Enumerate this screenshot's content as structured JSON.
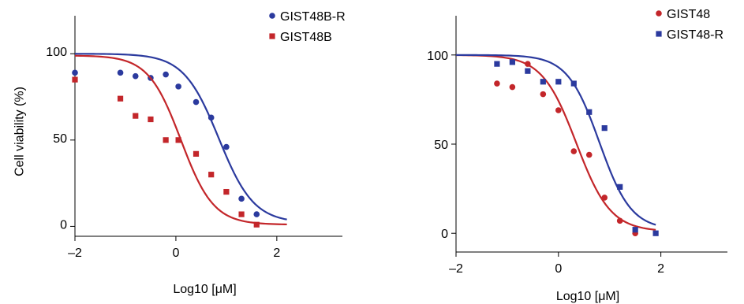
{
  "chart_data": [
    {
      "type": "scatter",
      "title": "",
      "xlabel": "Log10 [μM]",
      "ylabel": "Cell viability (%)",
      "xlim": [
        -2,
        3.3
      ],
      "ylim": [
        -3,
        122
      ],
      "xticks": [
        {
          "value": -2,
          "label": "–2"
        },
        {
          "value": 0,
          "label": "0"
        },
        {
          "value": 2,
          "label": "2"
        }
      ],
      "yticks": [
        {
          "value": 0,
          "label": "0"
        },
        {
          "value": 50,
          "label": "50"
        },
        {
          "value": 100,
          "label": "100"
        }
      ],
      "grid": false,
      "legend_position": "top-right",
      "series": [
        {
          "name": "GIST48B-R",
          "marker": "circle",
          "color": "#2b3a9e",
          "points": [
            [
              -2.0,
              89
            ],
            [
              -1.1,
              89
            ],
            [
              -0.8,
              87
            ],
            [
              -0.5,
              86
            ],
            [
              -0.2,
              88
            ],
            [
              0.05,
              81
            ],
            [
              0.4,
              72
            ],
            [
              0.7,
              63
            ],
            [
              1.0,
              46
            ],
            [
              1.3,
              16
            ],
            [
              1.6,
              7
            ]
          ],
          "fit": {
            "bottom": 2,
            "top": 100,
            "log_ic50": 0.85,
            "hill": 1.25,
            "x_range": [
              -2,
              2.2
            ]
          }
        },
        {
          "name": "GIST48B",
          "marker": "square",
          "color": "#c3262a",
          "points": [
            [
              -2.0,
              85
            ],
            [
              -1.1,
              74
            ],
            [
              -0.8,
              64
            ],
            [
              -0.5,
              62
            ],
            [
              -0.2,
              50
            ],
            [
              0.05,
              50
            ],
            [
              0.4,
              42
            ],
            [
              0.7,
              30
            ],
            [
              1.0,
              20
            ],
            [
              1.3,
              7
            ],
            [
              1.6,
              1
            ]
          ],
          "fit": {
            "bottom": 1,
            "top": 99,
            "log_ic50": 0.1,
            "hill": 1.35,
            "x_range": [
              -2,
              2.2
            ]
          }
        }
      ]
    },
    {
      "type": "scatter",
      "title": "",
      "xlabel": "Log10 [μM]",
      "ylabel": "",
      "xlim": [
        -2,
        3.3
      ],
      "ylim": [
        -3,
        122
      ],
      "xticks": [
        {
          "value": -2,
          "label": "–2"
        },
        {
          "value": 0,
          "label": "0"
        },
        {
          "value": 2,
          "label": "2"
        }
      ],
      "yticks": [
        {
          "value": 0,
          "label": "0"
        },
        {
          "value": 50,
          "label": "50"
        },
        {
          "value": 100,
          "label": "100"
        }
      ],
      "grid": false,
      "legend_position": "top-right",
      "series": [
        {
          "name": "GIST48",
          "marker": "circle",
          "color": "#c3262a",
          "points": [
            [
              -1.2,
              84
            ],
            [
              -0.9,
              82
            ],
            [
              -0.6,
              95
            ],
            [
              -0.3,
              78
            ],
            [
              0.0,
              69
            ],
            [
              0.3,
              46
            ],
            [
              0.6,
              44
            ],
            [
              0.9,
              20
            ],
            [
              1.2,
              7
            ],
            [
              1.5,
              0
            ]
          ],
          "fit": {
            "bottom": 1,
            "top": 100,
            "log_ic50": 0.35,
            "hill": 1.3,
            "x_range": [
              -2,
              1.9
            ]
          }
        },
        {
          "name": "GIST48-R",
          "marker": "square",
          "color": "#2b3a9e",
          "points": [
            [
              -1.2,
              95
            ],
            [
              -0.9,
              96
            ],
            [
              -0.6,
              91
            ],
            [
              -0.3,
              85
            ],
            [
              0.0,
              85
            ],
            [
              0.3,
              84
            ],
            [
              0.6,
              68
            ],
            [
              0.9,
              59
            ],
            [
              1.2,
              26
            ],
            [
              1.5,
              2
            ],
            [
              1.9,
              0
            ]
          ],
          "fit": {
            "bottom": 2,
            "top": 100,
            "log_ic50": 0.8,
            "hill": 1.4,
            "x_range": [
              -2,
              1.9
            ]
          }
        }
      ]
    }
  ]
}
